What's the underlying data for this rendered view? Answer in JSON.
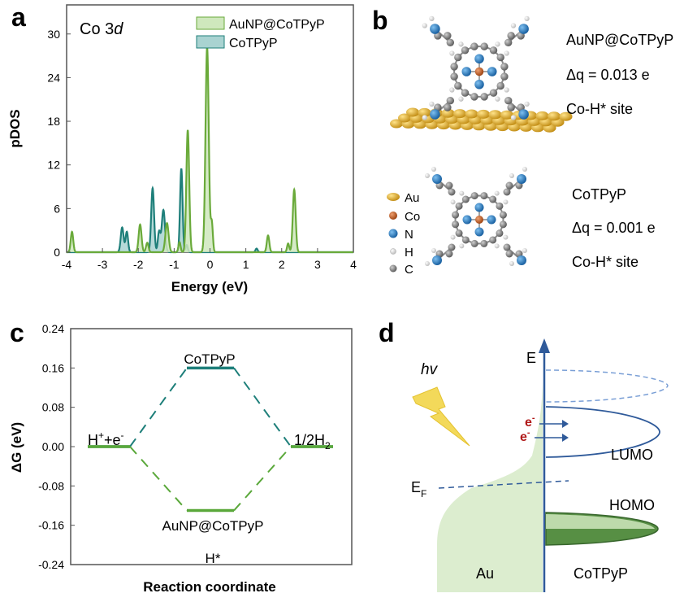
{
  "panels": {
    "a": {
      "letter": "a",
      "annotation_prefix": "Co 3",
      "annotation_italic": "d",
      "legend": [
        {
          "label": "AuNP@CoTPyP",
          "color": "#6aaa3a",
          "fill": "#cfe8bd"
        },
        {
          "label": "CoTPyP",
          "color": "#1e7f7a",
          "fill": "#a9d3d1"
        }
      ]
    },
    "b": {
      "letter": "b",
      "legend_atoms": [
        {
          "label": "Au",
          "color": "#e0b020"
        },
        {
          "label": "Co",
          "color": "#c0581a"
        },
        {
          "label": "N",
          "color": "#1e78c8"
        },
        {
          "label": "H",
          "color": "#dddddd"
        },
        {
          "label": "C",
          "color": "#7a7a7a"
        }
      ],
      "top": {
        "title": "AuNP@CoTPyP",
        "dq": "Δq = 0.013 e",
        "site": "Co-H* site"
      },
      "bottom": {
        "title": "CoTPyP",
        "dq": "Δq = 0.001 e",
        "site": "Co-H* site"
      }
    },
    "c": {
      "letter": "c",
      "left_label": "H",
      "left_label_sup1": "+",
      "left_label_mid": "+e",
      "left_label_sup2": "-",
      "right_label": "1/2H",
      "right_label_sub": "2",
      "top_state_label": "CoTPyP",
      "bottom_state_label": "AuNP@CoTPyP",
      "intermediate_label": "H*"
    },
    "d": {
      "letter": "d",
      "hv": "hv",
      "energy_axis": "E",
      "fermi": "E",
      "fermi_sub": "F",
      "electron": "e",
      "electron_sup": "-",
      "lumo": "LUMO",
      "homo": "HOMO",
      "metal": "Au",
      "molecule": "CoTPyP"
    }
  },
  "chart_data": [
    {
      "type": "area",
      "panel": "a",
      "title": "Co 3d",
      "xlabel": "Energy (eV)",
      "ylabel": "pDOS",
      "xlim": [
        -4,
        4
      ],
      "ylim": [
        0,
        34
      ],
      "xticks": [
        -4,
        -3,
        -2,
        -1,
        0,
        1,
        2,
        3,
        4
      ],
      "yticks": [
        0,
        6,
        12,
        18,
        24,
        30
      ],
      "series": [
        {
          "name": "AuNP@CoTPyP",
          "color": "#6aaa3a",
          "fill": "#cfe8bd",
          "peaks": [
            {
              "x": -3.85,
              "h": 2.8,
              "w": 0.035
            },
            {
              "x": -1.95,
              "h": 3.8,
              "w": 0.04
            },
            {
              "x": -1.75,
              "h": 1.3,
              "w": 0.035
            },
            {
              "x": -1.2,
              "h": 4.0,
              "w": 0.045
            },
            {
              "x": -0.85,
              "h": 1.4,
              "w": 0.03
            },
            {
              "x": -0.62,
              "h": 16.8,
              "w": 0.04
            },
            {
              "x": -0.08,
              "h": 28.2,
              "w": 0.045
            },
            {
              "x": 0.05,
              "h": 4.0,
              "w": 0.03
            },
            {
              "x": 1.62,
              "h": 2.3,
              "w": 0.035
            },
            {
              "x": 2.18,
              "h": 1.2,
              "w": 0.03
            },
            {
              "x": 2.35,
              "h": 8.6,
              "w": 0.04
            }
          ]
        },
        {
          "name": "CoTPyP",
          "color": "#1e7f7a",
          "fill": "#a9d3d1",
          "peaks": [
            {
              "x": -2.45,
              "h": 3.4,
              "w": 0.04
            },
            {
              "x": -2.32,
              "h": 2.8,
              "w": 0.035
            },
            {
              "x": -1.6,
              "h": 8.8,
              "w": 0.04
            },
            {
              "x": -1.42,
              "h": 2.8,
              "w": 0.035
            },
            {
              "x": -1.3,
              "h": 5.8,
              "w": 0.045
            },
            {
              "x": -0.8,
              "h": 11.5,
              "w": 0.035
            },
            {
              "x": -0.65,
              "h": 1.0,
              "w": 0.03
            },
            {
              "x": 1.3,
              "h": 0.5,
              "w": 0.03
            }
          ]
        }
      ]
    },
    {
      "type": "line",
      "panel": "c",
      "title": "",
      "xlabel": "Reaction coordinate",
      "ylabel": "ΔG (eV)",
      "ylim": [
        -0.24,
        0.24
      ],
      "yticks": [
        0.24,
        0.16,
        0.08,
        0.0,
        -0.08,
        -0.16,
        -0.24
      ],
      "ytick_labels": [
        "0.24",
        "0.16",
        "0.08",
        "0.00",
        "-0.08",
        "-0.16",
        "-0.24"
      ],
      "categories": [
        "H+ + e-",
        "H*",
        "1/2H2"
      ],
      "series": [
        {
          "name": "CoTPyP",
          "color": "#1e7f7a",
          "values": [
            0.0,
            0.16,
            0.0
          ]
        },
        {
          "name": "AuNP@CoTPyP",
          "color": "#5aa83a",
          "values": [
            0.0,
            -0.13,
            0.0
          ]
        }
      ]
    }
  ]
}
